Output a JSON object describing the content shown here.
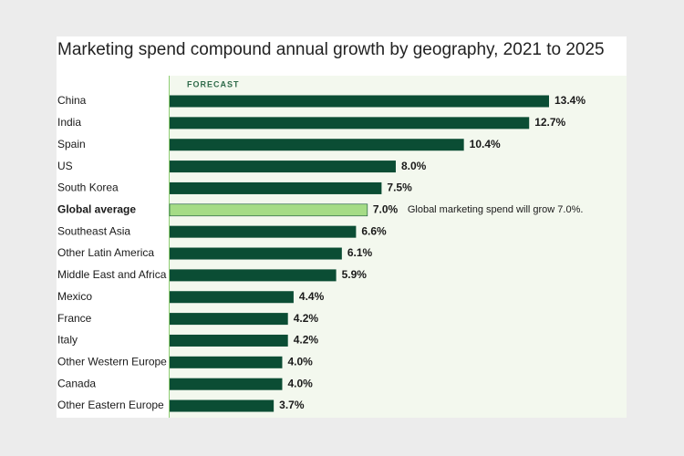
{
  "chart_data": {
    "type": "bar",
    "title": "Marketing spend compound annual growth by geography, 2021 to 2025",
    "label": "FORECAST",
    "categories": [
      "China",
      "India",
      "Spain",
      "US",
      "South Korea",
      "Global average",
      "Southeast Asia",
      "Other Latin America",
      "Middle East and Africa",
      "Mexico",
      "France",
      "Italy",
      "Other Western Europe",
      "Canada",
      "Other Eastern Europe"
    ],
    "values": [
      13.4,
      12.7,
      10.4,
      8.0,
      7.5,
      7.0,
      6.6,
      6.1,
      5.9,
      4.4,
      4.2,
      4.2,
      4.0,
      4.0,
      3.7
    ],
    "value_labels": [
      "13.4%",
      "12.7%",
      "10.4%",
      "8.0%",
      "7.5%",
      "7.0%",
      "6.6%",
      "6.1%",
      "5.9%",
      "4.4%",
      "4.2%",
      "4.2%",
      "4.0%",
      "4.0%",
      "3.7%"
    ],
    "color": "#0b4d34",
    "highlight": {
      "index": 5,
      "color": "#a5dc86",
      "annotation": "Global marketing spend will grow 7.0%."
    }
  }
}
